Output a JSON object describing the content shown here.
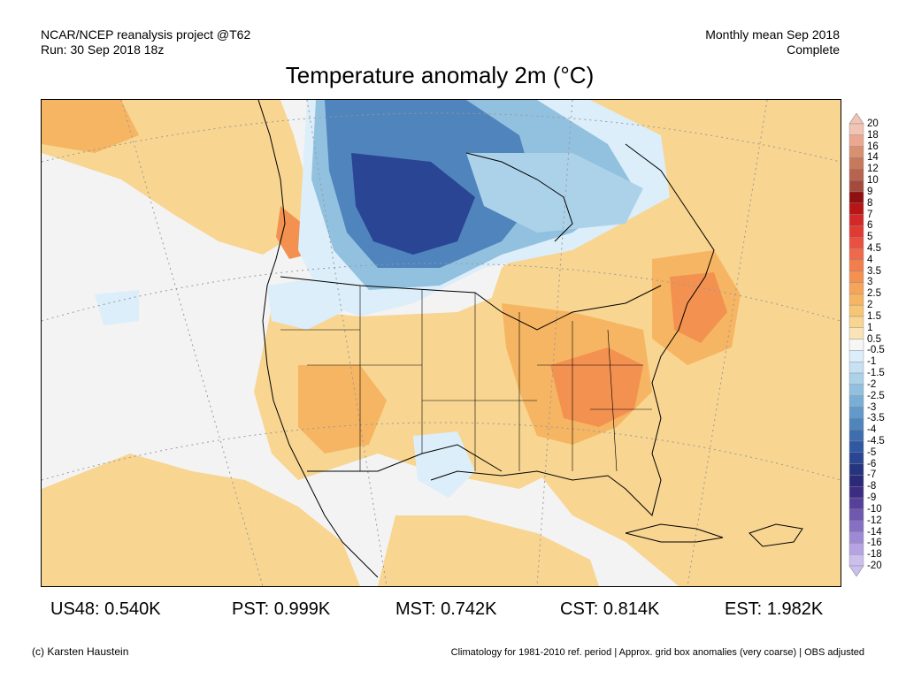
{
  "header": {
    "left_line1": "NCAR/NCEP reanalysis project @T62",
    "left_line2": "Run: 30 Sep 2018 18z",
    "right_line1": "Monthly mean Sep 2018",
    "right_line2": "Complete"
  },
  "title": "Temperature anomaly 2m (°C)",
  "colorbar": {
    "labels": [
      "20",
      "18",
      "16",
      "14",
      "12",
      "10",
      "9",
      "8",
      "7",
      "6",
      "5",
      "4.5",
      "4",
      "3.5",
      "3",
      "2.5",
      "2",
      "1.5",
      "1",
      "0.5",
      "-0.5",
      "-1",
      "-1.5",
      "-2",
      "-2.5",
      "-3",
      "-3.5",
      "-4",
      "-4.5",
      "-5",
      "-6",
      "-7",
      "-8",
      "-9",
      "-10",
      "-12",
      "-14",
      "-16",
      "-18",
      "-20"
    ],
    "colors": [
      "#f2c4b4",
      "#e9a88f",
      "#d8906e",
      "#c7795c",
      "#b7634d",
      "#a54b3e",
      "#8f1010",
      "#b81616",
      "#d42828",
      "#e03a32",
      "#ea5040",
      "#f0694a",
      "#f27e4c",
      "#f39150",
      "#f5a45a",
      "#f6b562",
      "#f7c674",
      "#f8d591",
      "#fae4b5",
      "#f6f6f6",
      "#dceef9",
      "#c6e1f2",
      "#acd2ea",
      "#92c1e0",
      "#7aaed5",
      "#6399c9",
      "#4f84bc",
      "#3e6eb0",
      "#3158a3",
      "#294594",
      "#25347f",
      "#2a2a78",
      "#3c2c82",
      "#56409a",
      "#6e58b0",
      "#8670c4",
      "#9e8ad4",
      "#b5a4e1",
      "#cbbfee"
    ]
  },
  "stats": [
    {
      "label": "US48: 0.540K"
    },
    {
      "label": "PST: 0.999K"
    },
    {
      "label": "MST: 0.742K"
    },
    {
      "label": "CST: 0.814K"
    },
    {
      "label": "EST: 1.982K"
    }
  ],
  "footer": {
    "left": "(c) Karsten Haustein",
    "right": "Climatology for 1981-2010 ref. period | Approx. grid box anomalies (very coarse) | OBS adjusted"
  },
  "map_palette": {
    "neutral": "#f3f3f3",
    "warm_light": "#f8d591",
    "warm_mid": "#f6b562",
    "warm_strong": "#f39150",
    "cool_light": "#dceef9",
    "cool_mid": "#92c1e0",
    "cool_strong": "#4f84bc",
    "cool_deep": "#294594"
  }
}
